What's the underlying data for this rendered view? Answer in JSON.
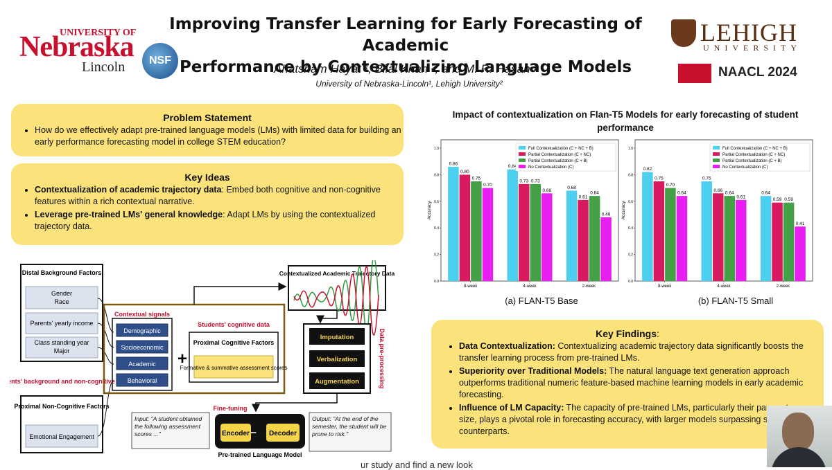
{
  "header": {
    "title_line1": "Improving Transfer Learning for Early Forecasting of Academic",
    "title_line2": "Performance by Contextualizing Language Models",
    "authors": "Ahatsham Hayat ¹, Bilal Khan ², and M. R. Hasan ¹",
    "affiliations": "University of Nebraska-Lincoln¹, Lehigh University²"
  },
  "logos": {
    "unl_university": "UNIVERSITY OF",
    "unl_nebraska": "Nebraska",
    "unl_lincoln": "Lincoln",
    "nsf": "NSF",
    "lehigh_name": "LEHIGH",
    "lehigh_university": "UNIVERSITY",
    "naacl": "NAACL 2024"
  },
  "problem": {
    "heading": "Problem Statement",
    "text": "How do we effectively adapt pre-trained language models (LMs) with limited data for building an early performance forecasting model in college STEM education?"
  },
  "key_ideas": {
    "heading": "Key Ideas",
    "items": [
      {
        "bold": "Contextualization of academic trajectory data",
        "text": ": Embed both cognitive and non-cognitive features within a rich contextual narrative."
      },
      {
        "bold": "Leverage pre-trained LMs' general knowledge",
        "text": ": Adapt LMs by using the contextualized trajectory data."
      }
    ]
  },
  "diagram": {
    "distal_title": "Distal Background Factors",
    "distal_items": [
      "Gender\nRace",
      "Parents' yearly income",
      "Class standing year\nMajor"
    ],
    "students_bg_label": "Students' background and non-cognitive data",
    "proximal_noncog_title": "Proximal Non-Cognitive Factors",
    "proximal_noncog_item": "Emotional Engagement",
    "contextual_signals": "Contextual signals",
    "signals": [
      "Demographic",
      "Socioeconomic",
      "Academic",
      "Behavioral"
    ],
    "plus": "+",
    "cognitive_label": "Students' cognitive data",
    "proximal_cog_title": "Proximal Cognitive Factors",
    "proximal_cog_item": "Formative & summative assessment scores",
    "ctx_traj_title": "Contextualized Academic Trajectory Data",
    "preproc_steps": [
      "Imputation",
      "Verbalization",
      "Augmentation"
    ],
    "preproc_label": "Data pre-processing",
    "finetuning": "Fine-tuning",
    "input_text": "Input: \"A student obtained the following assessment scores ...\"",
    "output_text": "Output: \"At the end of the semester, the student will be prone to risk.\"",
    "encoder": "Encoder",
    "decoder": "Decoder",
    "plm_label": "Pre-trained Language Model"
  },
  "chart_section": {
    "title": "Impact of contextualization on Flan-T5 Models for early forecasting of student performance"
  },
  "chart_data": [
    {
      "type": "bar",
      "caption": "(a) FLAN-T5 Base",
      "ylabel": "Accuracy",
      "ylim": [
        0,
        1.0
      ],
      "yticks": [
        "0.0",
        "0.2",
        "0.4",
        "0.6",
        "0.8",
        "1.0"
      ],
      "categories": [
        "8-week",
        "4-week",
        "2-week"
      ],
      "legend_position": "top-right",
      "series": [
        {
          "name": "Full Contextualization (C + NC + B)",
          "color": "#4dd0f0",
          "values": [
            0.86,
            0.84,
            0.68
          ],
          "labels": [
            "0.86",
            "0.84",
            "0.68"
          ]
        },
        {
          "name": "Partial Contextualization (C + NC)",
          "color": "#d81b60",
          "values": [
            0.8,
            0.73,
            0.61
          ],
          "labels": [
            "0.80",
            "0.73",
            "0.61"
          ]
        },
        {
          "name": "Partial Contextualization (C + B)",
          "color": "#43a047",
          "values": [
            0.75,
            0.73,
            0.64
          ],
          "labels": [
            "0.75",
            "0.73",
            "0.64"
          ]
        },
        {
          "name": "No Contextualization (C)",
          "color": "#e91ef0",
          "values": [
            0.7,
            0.66,
            0.48
          ],
          "labels": [
            "0.70",
            "0.66",
            "0.48"
          ]
        }
      ]
    },
    {
      "type": "bar",
      "caption": "(b) FLAN-T5 Small",
      "ylabel": "Accuracy",
      "ylim": [
        0,
        1.0
      ],
      "yticks": [
        "0.0",
        "0.2",
        "0.4",
        "0.6",
        "0.8",
        "1.0"
      ],
      "categories": [
        "8-week",
        "4-week",
        "2-week"
      ],
      "legend_position": "top-right",
      "series": [
        {
          "name": "Full Contextualization (C + NC + B)",
          "color": "#4dd0f0",
          "values": [
            0.82,
            0.75,
            0.64
          ],
          "labels": [
            "0.82",
            "0.75",
            "0.64"
          ]
        },
        {
          "name": "Partial Contextualization (C + NC)",
          "color": "#d81b60",
          "values": [
            0.75,
            0.66,
            0.59
          ],
          "labels": [
            "0.75",
            "0.66",
            "0.59"
          ]
        },
        {
          "name": "Partial Contextualization (C + B)",
          "color": "#43a047",
          "values": [
            0.7,
            0.64,
            0.59
          ],
          "labels": [
            "0.70",
            "0.64",
            "0.59"
          ]
        },
        {
          "name": "No Contextualization (C)",
          "color": "#e91ef0",
          "values": [
            0.64,
            0.61,
            0.41
          ],
          "labels": [
            "0.64",
            "0.61",
            "0.41"
          ]
        }
      ]
    }
  ],
  "key_findings": {
    "heading": "Key Findings",
    "heading_suffix": ":",
    "items": [
      {
        "bold": "Data Contextualization:",
        "text": " Contextualizing academic trajectory data significantly boosts the transfer learning process from pre-trained LMs."
      },
      {
        "bold": "Superiority over Traditional Models:",
        "text": " The natural language text generation approach outperforms traditional numeric feature-based machine learning models in early academic forecasting."
      },
      {
        "bold": "Influence of LM Capacity:",
        "text": " The capacity of pre-trained LMs, particularly their parameter size, plays a pivotal role in forecasting accuracy, with larger models surpassing smaller counterparts."
      }
    ]
  },
  "footer_fragment": "ur study and find a new look"
}
